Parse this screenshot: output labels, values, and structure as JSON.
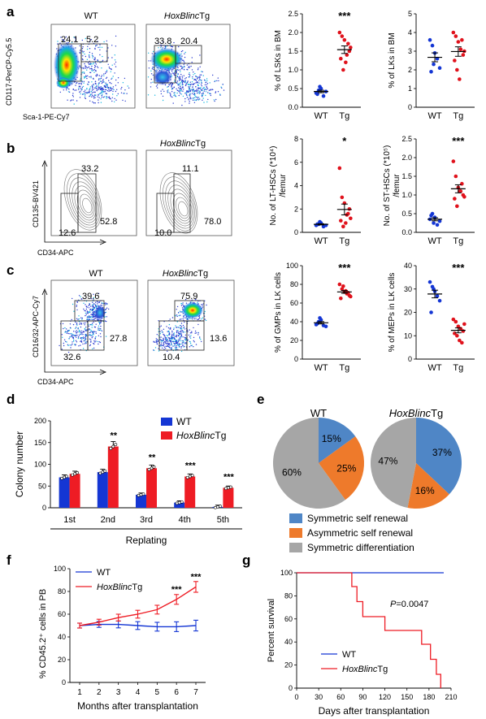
{
  "panels": {
    "a": "a",
    "b": "b",
    "c": "c",
    "d": "d",
    "e": "e",
    "f": "f",
    "g": "g"
  },
  "flow": {
    "a": {
      "wt_title": "WT",
      "tg_title_italic": "HoxBlinc",
      "tg_title_suffix": "Tg",
      "ylabel": "CD117-PerCP-Cy5.5",
      "xlabel": "Sca-1-PE-Cy7",
      "wt_gates": [
        "24.1",
        "5.2"
      ],
      "tg_gates": [
        "33.8",
        "20.4"
      ]
    },
    "b": {
      "tg_title_italic": "HoxBlinc",
      "tg_title_suffix": "Tg",
      "ylabel": "CD135-BV421",
      "xlabel": "CD34-APC",
      "wt_gates": [
        "33.2",
        "52.8",
        "12.6"
      ],
      "tg_gates": [
        "11.1",
        "78.0",
        "10.0"
      ]
    },
    "c": {
      "wt_title": "WT",
      "tg_title_italic": "HoxBlinc",
      "tg_title_suffix": "Tg",
      "ylabel": "CD16/32-APC-Cy7",
      "xlabel": "CD34-APC",
      "wt_gates": [
        "39.6",
        "27.8",
        "32.6"
      ],
      "tg_gates": [
        "75.9",
        "13.6",
        "10.4"
      ]
    }
  },
  "chart_data": [
    {
      "id": "a-lsk",
      "type": "scatter",
      "ylabel": "% of LSKs in BM",
      "categories": [
        "WT",
        "Tg"
      ],
      "ylim": [
        0,
        2.5
      ],
      "yticks": [
        "0.0",
        "0.5",
        "1.0",
        "1.5",
        "2.0",
        "2.5"
      ],
      "significance": "***",
      "series": [
        {
          "values": [
            0.38,
            0.45,
            0.5,
            0.3,
            0.42,
            0.35,
            0.55
          ]
        },
        {
          "values": [
            2.0,
            1.9,
            1.8,
            1.4,
            1.5,
            1.3,
            1.0,
            1.2,
            1.7,
            1.6
          ]
        }
      ]
    },
    {
      "id": "a-lk",
      "type": "scatter",
      "ylabel": "% of LKs in BM",
      "categories": [
        "WT",
        "Tg"
      ],
      "ylim": [
        0,
        5
      ],
      "yticks": [
        "0",
        "1",
        "2",
        "3",
        "4",
        "5"
      ],
      "significance": "",
      "series": [
        {
          "values": [
            3.6,
            3.3,
            2.9,
            2.6,
            2.1,
            1.9,
            2.3
          ]
        },
        {
          "values": [
            4.0,
            3.8,
            3.5,
            3.1,
            2.8,
            2.5,
            2.0,
            1.5,
            3.6,
            3.0
          ]
        }
      ]
    },
    {
      "id": "b-lthsc",
      "type": "scatter",
      "ylabel": "No. of LT-HSCs (*10⁴) /femur",
      "categories": [
        "WT",
        "Tg"
      ],
      "ylim": [
        0,
        8
      ],
      "yticks": [
        "0",
        "2",
        "4",
        "6",
        "8"
      ],
      "significance": "*",
      "series": [
        {
          "values": [
            0.6,
            0.7,
            0.8,
            0.5,
            0.6,
            0.7,
            0.9
          ]
        },
        {
          "values": [
            5.5,
            3.0,
            2.5,
            1.5,
            2.0,
            1.0,
            0.5,
            0.8,
            1.6,
            1.2
          ]
        }
      ]
    },
    {
      "id": "b-sthsc",
      "type": "scatter",
      "ylabel": "No. of ST-HSCs (*10⁵) /femur",
      "categories": [
        "WT",
        "Tg"
      ],
      "ylim": [
        0,
        2.5
      ],
      "yticks": [
        "0.0",
        "0.5",
        "1.0",
        "1.5",
        "2.0",
        "2.5"
      ],
      "significance": "***",
      "series": [
        {
          "values": [
            0.35,
            0.5,
            0.4,
            0.2,
            0.3,
            0.45,
            0.25
          ]
        },
        {
          "values": [
            1.9,
            1.5,
            1.2,
            1.1,
            1.0,
            0.9,
            0.7,
            1.1,
            1.3,
            0.95
          ]
        }
      ]
    },
    {
      "id": "c-gmp",
      "type": "scatter",
      "ylabel": "% of GMPs in LK cells",
      "categories": [
        "WT",
        "Tg"
      ],
      "ylim": [
        0,
        100
      ],
      "yticks": [
        "0",
        "20",
        "40",
        "60",
        "80",
        "100"
      ],
      "significance": "***",
      "series": [
        {
          "values": [
            37,
            40,
            42,
            36,
            35,
            38,
            44
          ]
        },
        {
          "values": [
            80,
            75,
            72,
            70,
            68,
            65,
            78,
            73,
            71,
            67
          ]
        }
      ]
    },
    {
      "id": "c-mep",
      "type": "scatter",
      "ylabel": "% of MEPs in LK cells",
      "categories": [
        "WT",
        "Tg"
      ],
      "ylim": [
        0,
        40
      ],
      "yticks": [
        "0",
        "10",
        "20",
        "30",
        "40"
      ],
      "significance": "***",
      "series": [
        {
          "values": [
            33,
            31,
            29,
            27,
            25,
            20,
            30
          ]
        },
        {
          "values": [
            17,
            16,
            14,
            13,
            12,
            11,
            10,
            8,
            7,
            15
          ]
        }
      ]
    },
    {
      "id": "d",
      "type": "bar",
      "ylabel": "Colony number",
      "xlabel": "Replating",
      "categories": [
        "1st",
        "2nd",
        "3rd",
        "4th",
        "5th"
      ],
      "ylim": [
        0,
        200
      ],
      "yticks": [
        "0",
        "50",
        "100",
        "150",
        "200"
      ],
      "series": [
        {
          "name": "WT",
          "italic": "",
          "suffix": "WT",
          "color": "#1436d4",
          "values": [
            70,
            82,
            30,
            12,
            2
          ]
        },
        {
          "name": "HoxBlincTg",
          "italic": "HoxBlinc",
          "suffix": "Tg",
          "color": "#ee1c24",
          "values": [
            78,
            141,
            91,
            72,
            46
          ]
        }
      ],
      "significance": [
        "",
        "**",
        "**",
        "***",
        "***"
      ]
    },
    {
      "id": "e",
      "type": "pie",
      "titles": [
        {
          "plain": "WT",
          "italic": ""
        },
        {
          "plain": "Tg",
          "italic": "HoxBlinc"
        }
      ],
      "legend": [
        "Symmetric self renewal",
        "Asymmetric self renewal",
        "Symmetric differentiation"
      ],
      "colors": [
        "#4f86c6",
        "#ee7a2b",
        "#a6a6a6"
      ],
      "pies": [
        [
          15,
          25,
          60
        ],
        [
          37,
          16,
          47
        ]
      ],
      "labels": [
        [
          "15%",
          "25%",
          "60%"
        ],
        [
          "37%",
          "16%",
          "47%"
        ]
      ]
    },
    {
      "id": "f",
      "type": "line",
      "ylabel": "% CD45.2⁺ cells in PB",
      "xlabel": "Months after transplantation",
      "x": [
        1,
        2,
        3,
        4,
        5,
        6,
        7
      ],
      "xticks": [
        "1",
        "2",
        "3",
        "4",
        "5",
        "6",
        "7"
      ],
      "ylim": [
        0,
        100
      ],
      "yticks": [
        "0",
        "20",
        "40",
        "60",
        "80",
        "100"
      ],
      "series": [
        {
          "name": "WT",
          "color": "#1436d4",
          "values": [
            50,
            51,
            51,
            50,
            49,
            49,
            50
          ]
        },
        {
          "name": "HoxBlincTg",
          "color": "#ee1c24",
          "values": [
            50,
            53,
            57,
            60,
            64,
            73,
            84
          ]
        }
      ],
      "significance": [
        "",
        "",
        "",
        "",
        "",
        "***",
        "***"
      ],
      "legend": [
        {
          "plain": "WT",
          "italic": ""
        },
        {
          "plain": "Tg",
          "italic": "HoxBlinc"
        }
      ]
    },
    {
      "id": "g",
      "type": "line",
      "ylabel": "Percent survival",
      "xlabel": "Days after transplantation",
      "xticks": [
        "0",
        "30",
        "60",
        "90",
        "120",
        "150",
        "180",
        "210"
      ],
      "xlim": [
        0,
        210
      ],
      "ylim": [
        0,
        100
      ],
      "yticks": [
        "0",
        "20",
        "40",
        "60",
        "80",
        "100"
      ],
      "annotation": {
        "italic": "P",
        "rest": "=0.0047"
      },
      "series": [
        {
          "name": "WT",
          "color": "#1436d4",
          "steps": [
            [
              0,
              100
            ],
            [
              200,
              100
            ]
          ]
        },
        {
          "name": "HoxBlincTg",
          "color": "#ee1c24",
          "steps": [
            [
              0,
              100
            ],
            [
              75,
              100
            ],
            [
              75,
              88
            ],
            [
              82,
              88
            ],
            [
              82,
              75
            ],
            [
              90,
              75
            ],
            [
              90,
              62
            ],
            [
              120,
              62
            ],
            [
              120,
              50
            ],
            [
              170,
              50
            ],
            [
              170,
              38
            ],
            [
              182,
              38
            ],
            [
              182,
              25
            ],
            [
              190,
              25
            ],
            [
              190,
              12
            ],
            [
              196,
              12
            ],
            [
              196,
              0
            ]
          ]
        }
      ],
      "legend": [
        {
          "plain": "WT",
          "italic": ""
        },
        {
          "plain": "Tg",
          "italic": "HoxBlinc"
        }
      ]
    }
  ]
}
